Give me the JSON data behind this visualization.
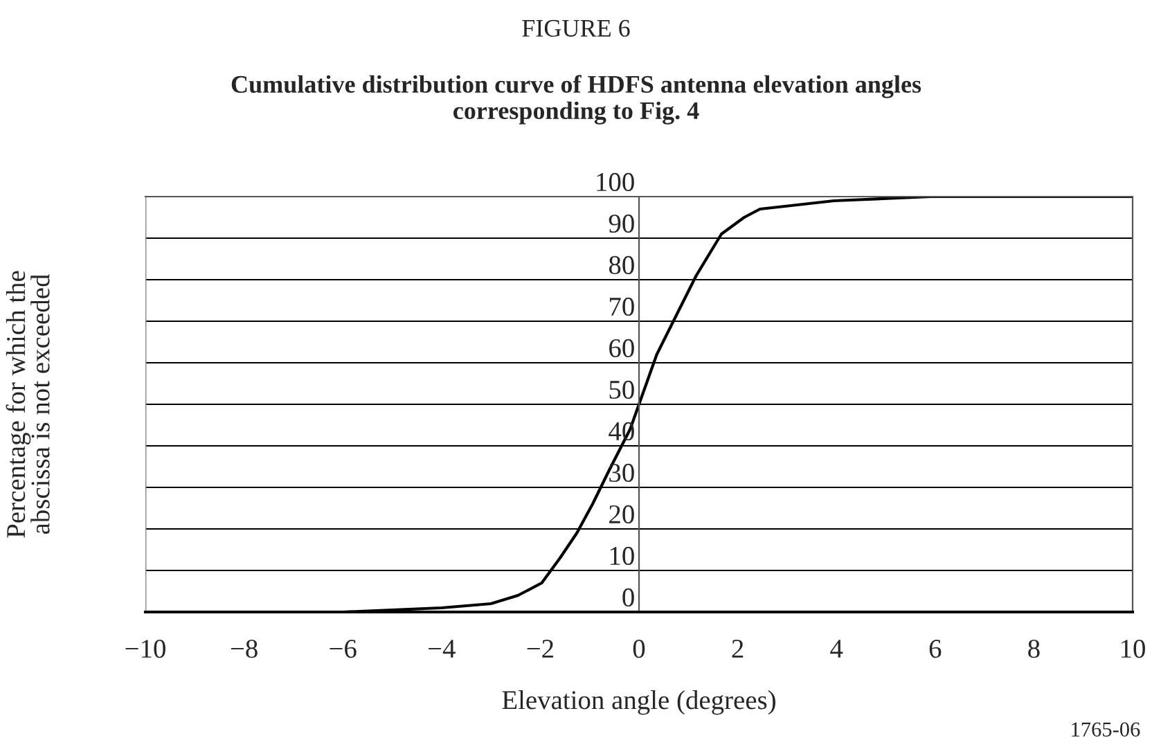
{
  "chart_data": {
    "type": "line",
    "title": "FIGURE 6",
    "subtitle": "Cumulative distribution curve of HDFS antenna elevation angles\ncorresponding to Fig. 4",
    "xlabel": "Elevation angle (degrees)",
    "ylabel": "Percentage for which the\nabscissa is not exceeded",
    "series": [
      {
        "color": "#000000",
        "x": [
          -10,
          -6,
          -4,
          -3,
          -2.45,
          -1.97,
          -1.6,
          -1.26,
          -0.94,
          -0.61,
          -0.18,
          0.36,
          0.78,
          1.16,
          1.67,
          2.13,
          2.45,
          3.95,
          5.9,
          10
        ],
        "values": [
          0,
          0,
          1,
          2,
          4,
          7,
          13,
          19,
          26,
          34,
          44,
          62,
          72,
          81,
          91,
          95,
          97,
          99,
          100,
          100
        ]
      }
    ],
    "xlim": [
      -10,
      10
    ],
    "ylim": [
      0,
      100
    ],
    "xticks": [
      {
        "value": -10,
        "label": "−10"
      },
      {
        "value": -8,
        "label": "−8"
      },
      {
        "value": -6,
        "label": "−6"
      },
      {
        "value": -4,
        "label": "−4"
      },
      {
        "value": -2,
        "label": "−2"
      },
      0,
      2,
      4,
      6,
      8,
      10
    ],
    "yticks": [
      0,
      10,
      20,
      30,
      40,
      50,
      60,
      70,
      80,
      90,
      100
    ],
    "grid": "y",
    "annotations": [
      "1765-06"
    ]
  }
}
